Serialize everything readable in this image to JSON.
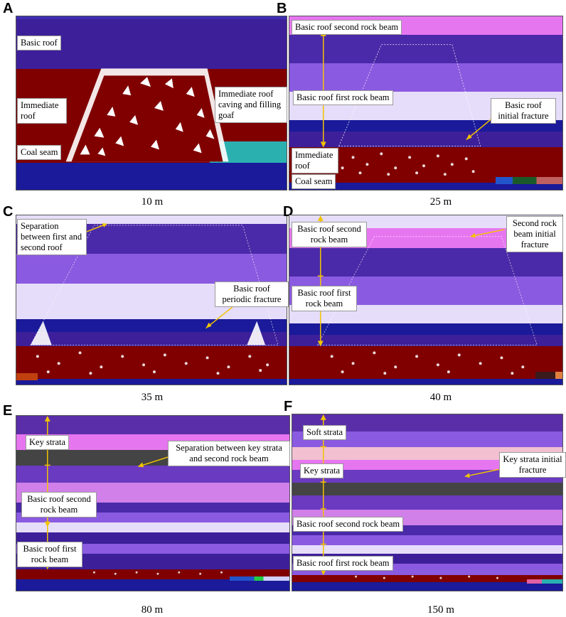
{
  "colors": {
    "blue": "#2a1f9a",
    "indigo": "#3d1f8f",
    "purple": "#5a2ea8",
    "violet": "#8a5ae0",
    "lavender": "#b9a4f2",
    "pale": "#e6ddfa",
    "magenta": "#e676f0",
    "pink": "#f2b8d8",
    "dark": "#444444",
    "maroon": "#800000",
    "navy": "#1a1a9a",
    "teal": "#2bb0b0",
    "arrow": "#f2c400"
  },
  "panels": [
    {
      "id": "A",
      "caption": "10 m",
      "labels": {
        "basic_roof": "Basic roof",
        "immediate_roof": "Immediate roof",
        "coal_seam": "Coal seam",
        "caving": "Immediate roof caving and filling goaf"
      }
    },
    {
      "id": "B",
      "caption": "25 m",
      "labels": {
        "second_beam": "Basic roof second rock beam",
        "first_beam": "Basic roof first rock beam",
        "initial_fracture": "Basic roof initial fracture",
        "immediate_roof": "Immediate roof",
        "coal_seam": "Coal seam"
      }
    },
    {
      "id": "C",
      "caption": "35 m",
      "labels": {
        "separation": "Separation between first and second roof",
        "periodic_fracture": "Basic roof periodic fracture"
      }
    },
    {
      "id": "D",
      "caption": "40 m",
      "labels": {
        "second_beam": "Basic roof second rock beam",
        "first_beam": "Basic roof first rock beam",
        "second_initial": "Second rock beam initial fracture"
      }
    },
    {
      "id": "E",
      "caption": "80 m",
      "labels": {
        "key_strata": "Key strata",
        "separation_key": "Separation between key strata and second rock beam",
        "second_beam": "Basic roof second rock beam",
        "first_beam": "Basic roof first rock beam"
      }
    },
    {
      "id": "F",
      "caption": "150 m",
      "labels": {
        "soft_strata": "Soft strata",
        "key_strata": "Key strata",
        "key_fracture": "Key strata initial fracture",
        "second_beam": "Basic roof second rock beam",
        "first_beam": "Basic roof first rock beam"
      }
    }
  ]
}
